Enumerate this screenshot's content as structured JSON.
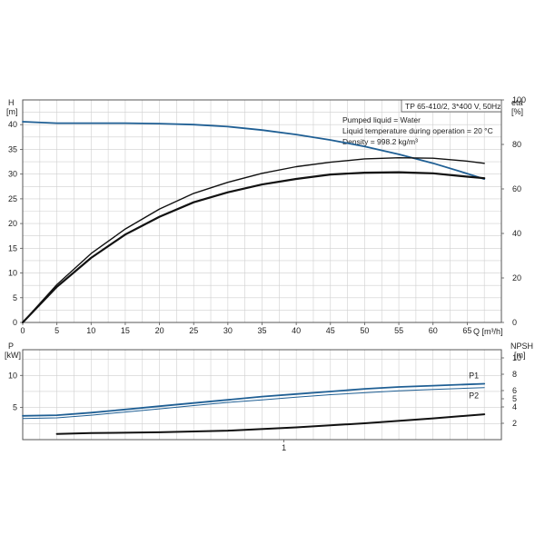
{
  "header": {
    "model": "TP 65-410/2, 3*400 V, 50Hz",
    "info": [
      "Pumped liquid = Water",
      "Liquid temperature during operation = 20 °C",
      "Density = 998.2 kg/m³"
    ]
  },
  "colors": {
    "blue": "#1f5f94",
    "black": "#111111",
    "grid": "#cfcfcf",
    "axis": "#555555"
  },
  "chart_data": [
    {
      "type": "line",
      "title": "",
      "xlabel": "Q [m³/h]",
      "xlim": [
        0,
        70
      ],
      "xticks": [
        0,
        5,
        10,
        15,
        20,
        25,
        30,
        35,
        40,
        45,
        50,
        55,
        60,
        65
      ],
      "left_axis": {
        "label_top": "H",
        "label_unit": "[m]",
        "ylim": [
          0,
          45
        ],
        "ticks": [
          0,
          5,
          10,
          15,
          20,
          25,
          30,
          35,
          40
        ]
      },
      "right_axis": {
        "label_top": "eta",
        "label_unit": "[%]",
        "ylim": [
          0,
          100
        ],
        "ticks": [
          0,
          20,
          40,
          60,
          80,
          100
        ]
      },
      "series": [
        {
          "axis": "left",
          "color": "blue",
          "width": 1.8,
          "x": [
            0,
            5,
            10,
            15,
            20,
            25,
            30,
            35,
            40,
            45,
            50,
            55,
            60,
            65,
            67.5
          ],
          "y": [
            40.6,
            40.3,
            40.3,
            40.3,
            40.2,
            40.0,
            39.6,
            38.9,
            38.0,
            36.9,
            35.6,
            34.0,
            32.2,
            30.1,
            29.0
          ]
        },
        {
          "axis": "right",
          "color": "black",
          "width": 1.4,
          "x": [
            0,
            5,
            10,
            15,
            20,
            25,
            30,
            35,
            40,
            45,
            50,
            55,
            60,
            65,
            67.5
          ],
          "y": [
            0,
            17,
            31,
            42,
            51,
            58,
            63,
            67,
            70,
            72,
            73.5,
            74,
            73.8,
            72.5,
            71.5
          ]
        },
        {
          "axis": "right",
          "color": "black",
          "width": 2.2,
          "x": [
            0,
            5,
            10,
            15,
            20,
            25,
            30,
            35,
            40,
            45,
            50,
            55,
            60,
            65,
            67.5
          ],
          "y": [
            0,
            16,
            29,
            39.5,
            47.5,
            54,
            58.5,
            62,
            64.5,
            66.5,
            67.3,
            67.5,
            67,
            65.5,
            64.8
          ]
        }
      ]
    },
    {
      "type": "line",
      "title": "",
      "xlabel": "",
      "xlim": [
        0,
        70
      ],
      "left_axis": {
        "label_top": "P",
        "label_unit": "[kW]",
        "ylim": [
          0,
          14
        ],
        "ticks": [
          5,
          10
        ]
      },
      "right_axis": {
        "label_top": "NPSH",
        "label_unit": "[m]",
        "ylim": [
          0,
          11
        ],
        "ticks": [
          2,
          4,
          5,
          6,
          8,
          10
        ]
      },
      "x_marker": {
        "x": 38.2,
        "label": "1"
      },
      "series": [
        {
          "name": "P1",
          "axis": "left",
          "color": "blue",
          "width": 1.8,
          "x": [
            0,
            5,
            10,
            15,
            20,
            25,
            30,
            35,
            40,
            45,
            50,
            55,
            60,
            65,
            67.5
          ],
          "y": [
            3.7,
            3.8,
            4.2,
            4.7,
            5.2,
            5.7,
            6.2,
            6.7,
            7.1,
            7.5,
            7.9,
            8.2,
            8.4,
            8.6,
            8.7
          ]
        },
        {
          "name": "P2",
          "axis": "left",
          "color": "blue",
          "width": 1.0,
          "x": [
            0,
            5,
            10,
            15,
            20,
            25,
            30,
            35,
            40,
            45,
            50,
            55,
            60,
            65,
            67.5
          ],
          "y": [
            3.3,
            3.4,
            3.8,
            4.3,
            4.8,
            5.3,
            5.8,
            6.2,
            6.6,
            7.0,
            7.3,
            7.6,
            7.8,
            8.0,
            8.1
          ]
        },
        {
          "axis": "right",
          "color": "black",
          "width": 2.0,
          "x": [
            5,
            10,
            20,
            30,
            40,
            50,
            60,
            67.5
          ],
          "y": [
            0.7,
            0.8,
            0.9,
            1.1,
            1.5,
            2.0,
            2.6,
            3.1
          ]
        }
      ]
    }
  ]
}
